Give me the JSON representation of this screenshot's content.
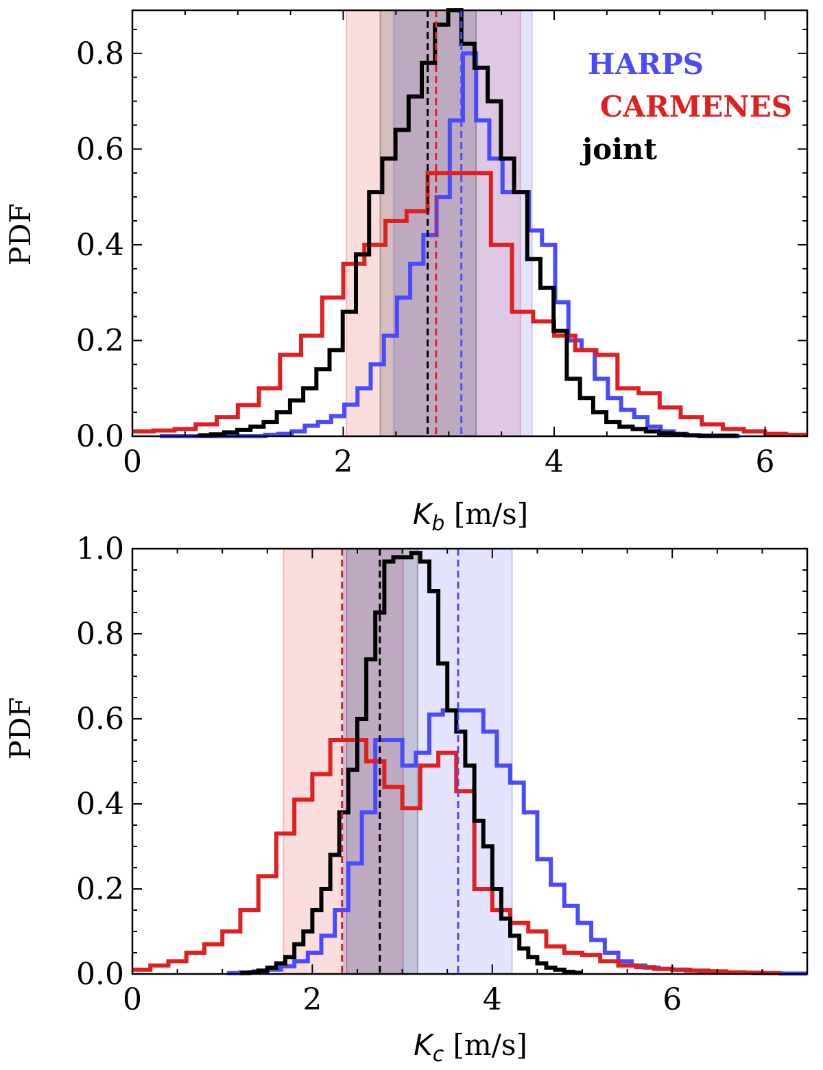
{
  "chart_data": [
    {
      "type": "histogram",
      "panel": "top",
      "ylabel": "PDF",
      "xlabel_symbol": "K",
      "xlabel_subscript": "b",
      "xlabel_unit": " [m/s]",
      "xlim": [
        0,
        6.4
      ],
      "ylim": [
        0,
        0.89
      ],
      "xticks": [
        0,
        2,
        4,
        6
      ],
      "xtick_labels": [
        "0",
        "2",
        "4",
        "6"
      ],
      "yticks": [
        0,
        0.2,
        0.4,
        0.6,
        0.8
      ],
      "ytick_labels": [
        "0.0",
        "0.2",
        "0.4",
        "0.6",
        "0.8"
      ],
      "legend": {
        "location": "top-right",
        "entries": [
          {
            "label": "HARPS",
            "color": "#4a4aff"
          },
          {
            "label": "CARMENES",
            "color": "#e02020"
          },
          {
            "label": "joint",
            "color": "#000000"
          }
        ]
      },
      "bands": [
        {
          "series": "CARMENES",
          "from": 2.03,
          "to": 3.68,
          "color": "#e02020"
        },
        {
          "series": "HARPS",
          "from": 2.48,
          "to": 3.79,
          "color": "#4a4aff"
        },
        {
          "series": "joint",
          "from": 2.35,
          "to": 3.26,
          "color": "#000000"
        }
      ],
      "medians": [
        {
          "series": "joint",
          "x": 2.8,
          "color": "#000000"
        },
        {
          "series": "CARMENES",
          "x": 2.88,
          "color": "#e02020"
        },
        {
          "series": "HARPS",
          "x": 3.12,
          "color": "#4a4aff"
        }
      ],
      "series": [
        {
          "name": "HARPS",
          "color": "#4a4aff",
          "x0": 0.26,
          "bin_width": 0.125,
          "values": [
            0,
            0,
            0,
            0,
            0,
            0,
            0,
            0,
            0.003,
            0.005,
            0.01,
            0.022,
            0.03,
            0.042,
            0.066,
            0.1,
            0.15,
            0.21,
            0.29,
            0.36,
            0.42,
            0.5,
            0.66,
            0.8,
            0.66,
            0.58,
            0.51,
            0.51,
            0.43,
            0.4,
            0.28,
            0.2,
            0.18,
            0.12,
            0.08,
            0.055,
            0.04,
            0.02,
            0.01,
            0.005,
            0.002,
            0,
            0,
            0
          ]
        },
        {
          "name": "CARMENES",
          "color": "#e02020",
          "x0": 0.0,
          "bin_width": 0.2,
          "values": [
            0.01,
            0.012,
            0.015,
            0.025,
            0.04,
            0.065,
            0.1,
            0.17,
            0.21,
            0.29,
            0.36,
            0.4,
            0.45,
            0.47,
            0.55,
            0.55,
            0.55,
            0.4,
            0.26,
            0.24,
            0.21,
            0.18,
            0.17,
            0.1,
            0.09,
            0.06,
            0.04,
            0.025,
            0.015,
            0.01,
            0.005,
            0.003
          ]
        },
        {
          "name": "joint",
          "color": "#000000",
          "x0": 0.62,
          "bin_width": 0.125,
          "values": [
            0.002,
            0.004,
            0.008,
            0.013,
            0.02,
            0.03,
            0.05,
            0.075,
            0.1,
            0.14,
            0.18,
            0.26,
            0.38,
            0.51,
            0.58,
            0.64,
            0.71,
            0.78,
            0.86,
            0.89,
            0.82,
            0.77,
            0.7,
            0.58,
            0.51,
            0.37,
            0.31,
            0.22,
            0.12,
            0.08,
            0.05,
            0.03,
            0.02,
            0.015,
            0.01,
            0.006,
            0.004,
            0.002,
            0.001,
            0.001,
            0.001
          ]
        }
      ]
    },
    {
      "type": "histogram",
      "panel": "bottom",
      "ylabel": "PDF",
      "xlabel_symbol": "K",
      "xlabel_subscript": "c",
      "xlabel_unit": " [m/s]",
      "xlim": [
        0,
        7.5
      ],
      "ylim": [
        0,
        1.0
      ],
      "xticks": [
        0,
        2,
        4,
        6
      ],
      "xtick_labels": [
        "0",
        "2",
        "4",
        "6"
      ],
      "yticks": [
        0,
        0.2,
        0.4,
        0.6,
        0.8,
        1.0
      ],
      "ytick_labels": [
        "0.0",
        "0.2",
        "0.4",
        "0.6",
        "0.8",
        "1.0"
      ],
      "bands": [
        {
          "series": "CARMENES",
          "from": 1.68,
          "to": 3.01,
          "color": "#e02020"
        },
        {
          "series": "HARPS",
          "from": 2.35,
          "to": 4.22,
          "color": "#4a4aff"
        },
        {
          "series": "joint",
          "from": 2.38,
          "to": 3.17,
          "color": "#000000"
        }
      ],
      "medians": [
        {
          "series": "CARMENES",
          "x": 2.33,
          "color": "#e02020"
        },
        {
          "series": "joint",
          "x": 2.75,
          "color": "#000000"
        },
        {
          "series": "HARPS",
          "x": 3.62,
          "color": "#4a4aff"
        }
      ],
      "series": [
        {
          "name": "HARPS",
          "color": "#4a4aff",
          "x0": 1.05,
          "bin_width": 0.15,
          "values": [
            0.002,
            0.004,
            0.006,
            0.01,
            0.018,
            0.03,
            0.05,
            0.09,
            0.15,
            0.26,
            0.38,
            0.55,
            0.55,
            0.49,
            0.52,
            0.61,
            0.62,
            0.62,
            0.62,
            0.57,
            0.49,
            0.45,
            0.38,
            0.27,
            0.21,
            0.16,
            0.12,
            0.08,
            0.05,
            0.03,
            0.02,
            0.015,
            0.012,
            0.01,
            0.008,
            0.006,
            0.005,
            0.004,
            0.003,
            0.002,
            0.002,
            0.001,
            0.001
          ]
        },
        {
          "name": "CARMENES",
          "color": "#e02020",
          "x0": 0.0,
          "bin_width": 0.2,
          "values": [
            0.01,
            0.02,
            0.03,
            0.05,
            0.07,
            0.1,
            0.15,
            0.23,
            0.33,
            0.41,
            0.47,
            0.55,
            0.55,
            0.5,
            0.44,
            0.39,
            0.49,
            0.52,
            0.43,
            0.2,
            0.15,
            0.12,
            0.1,
            0.065,
            0.05,
            0.045,
            0.03,
            0.02,
            0.016,
            0.012,
            0.01,
            0.008,
            0.006,
            0.004,
            0.003,
            0.002
          ]
        },
        {
          "name": "joint",
          "color": "#000000",
          "x0": 1.2,
          "bin_width": 0.1,
          "values": [
            0.002,
            0.004,
            0.008,
            0.015,
            0.025,
            0.04,
            0.07,
            0.1,
            0.15,
            0.2,
            0.28,
            0.38,
            0.48,
            0.6,
            0.74,
            0.85,
            0.97,
            0.98,
            0.98,
            0.99,
            0.97,
            0.9,
            0.73,
            0.62,
            0.57,
            0.49,
            0.36,
            0.3,
            0.2,
            0.13,
            0.09,
            0.06,
            0.04,
            0.025,
            0.015,
            0.01,
            0.005,
            0.003
          ]
        }
      ]
    }
  ]
}
